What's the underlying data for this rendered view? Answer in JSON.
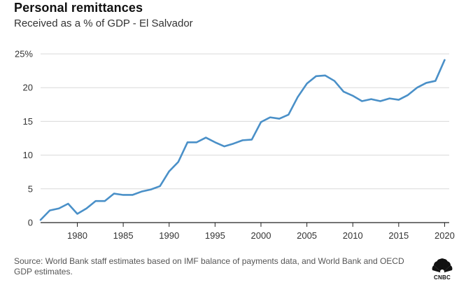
{
  "header": {
    "title": "Personal remittances",
    "subtitle": "Received as a % of GDP - El Salvador"
  },
  "footer": {
    "source": "Source: World Bank staff estimates based on IMF balance of payments data, and World Bank and OECD GDP estimates.",
    "logo_text": "CNBC",
    "logo_icon": "peacock-logo-icon"
  },
  "chart_data": {
    "type": "line",
    "title": "Personal remittances",
    "subtitle": "Received as a % of GDP - El Salvador",
    "xlabel": "",
    "ylabel": "",
    "xlim": [
      1976,
      2020.5
    ],
    "ylim": [
      0,
      25
    ],
    "x_ticks": [
      1980,
      1985,
      1990,
      1995,
      2000,
      2005,
      2010,
      2015,
      2020
    ],
    "y_ticks": [
      0,
      5,
      10,
      15,
      20,
      25
    ],
    "y_tick_labels": [
      "0",
      "5",
      "10",
      "15",
      "20",
      "25%"
    ],
    "grid": "horizontal",
    "line_color": "#4a90c8",
    "series": [
      {
        "x": [
          1976,
          1977,
          1978,
          1979,
          1980,
          1981,
          1982,
          1983,
          1984,
          1985,
          1986,
          1987,
          1988,
          1989,
          1990,
          1991,
          1992,
          1993,
          1994,
          1995,
          1996,
          1997,
          1998,
          1999,
          2000,
          2001,
          2002,
          2003,
          2004,
          2005,
          2006,
          2007,
          2008,
          2009,
          2010,
          2011,
          2012,
          2013,
          2014,
          2015,
          2016,
          2017,
          2018,
          2019,
          2020
        ],
        "values": [
          0.4,
          1.8,
          2.1,
          2.8,
          1.3,
          2.1,
          3.2,
          3.2,
          4.3,
          4.1,
          4.1,
          4.6,
          4.9,
          5.4,
          7.6,
          9.0,
          11.9,
          11.9,
          12.6,
          11.9,
          11.3,
          11.7,
          12.2,
          12.3,
          14.9,
          15.6,
          15.4,
          16.0,
          18.6,
          20.6,
          21.7,
          21.8,
          21.0,
          19.4,
          18.8,
          18.0,
          18.3,
          18.0,
          18.4,
          18.2,
          18.9,
          20.0,
          20.7,
          21.0,
          24.1
        ]
      }
    ]
  }
}
